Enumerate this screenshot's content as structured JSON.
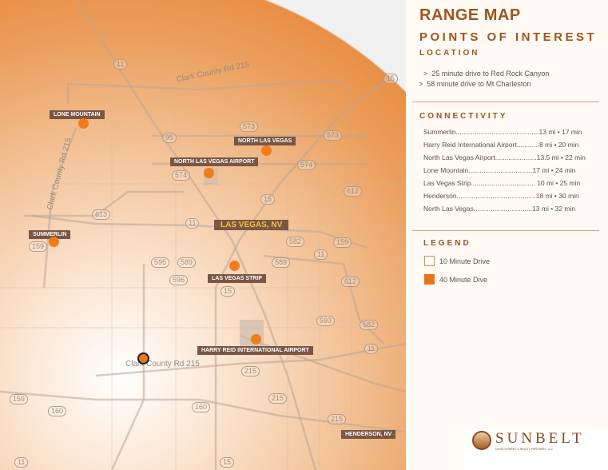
{
  "map": {
    "city_label": "LAS VEGAS, NV",
    "road_names": [
      "Clark County Rd 215",
      "Clark County Rd 215",
      "Clark County Rd 215"
    ],
    "shields": [
      "11",
      "15",
      "95",
      "573",
      "573",
      "574",
      "574",
      "612",
      "15",
      "613",
      "11",
      "582",
      "159",
      "11",
      "159",
      "589",
      "595",
      "589",
      "596",
      "15",
      "612",
      "593",
      "582",
      "11",
      "215",
      "215",
      "159",
      "160",
      "160",
      "215",
      "15",
      "11"
    ],
    "pois": [
      {
        "name": "LONE MOUNTAIN"
      },
      {
        "name": "NORTH LAS VEGAS"
      },
      {
        "name": "NORTH LAS VEGAS AIRPORT"
      },
      {
        "name": "SUMMERLIN"
      },
      {
        "name": "LAS VEGAS STRIP"
      },
      {
        "name": "HARRY REID INTERNATIONAL AIRPORT"
      },
      {
        "name": "HENDERSON, NV"
      }
    ],
    "colors": {
      "poi": "#f07d1a",
      "label_bg": "#7a5644",
      "city_text": "#f5c23a"
    }
  },
  "panel": {
    "title": "RANGE MAP",
    "subtitle": "POINTS OF INTEREST",
    "location_heading": "LOCATION",
    "location_items": [
      "25 minute drive to Red Rock Canyon",
      "58 minute drive to Mt Charleston"
    ],
    "bullet_glyph": ">",
    "connectivity_heading": "CONNECTIVITY",
    "connectivity": [
      "Summerlin............................................13 mi • 17 min",
      "Harry Reid International Airport............8 mi • 20 min",
      "North Las Vegas Airport......................13.5 mi • 22 min",
      "Lone Mountain..................................17 mi • 24 min",
      "Las Vegas Strip.................................. 10 mi • 25 min",
      "Henderson..........................................18 mi • 30 min",
      "North Las Vegas...............................13 mi • 32 min"
    ],
    "legend_heading": "LEGEND",
    "legend": [
      {
        "label": "10 Minute Drive",
        "color": "#ffffff",
        "border": "#e08a4a"
      },
      {
        "label": "40 Minute Dive",
        "color": "#e8731c",
        "border": "#e8731c"
      }
    ],
    "logo": {
      "name": "SUNBELT",
      "tagline": "DEVELOPMENT & REALTY PARTNERS, LLC"
    },
    "accent": "#a0541f"
  }
}
